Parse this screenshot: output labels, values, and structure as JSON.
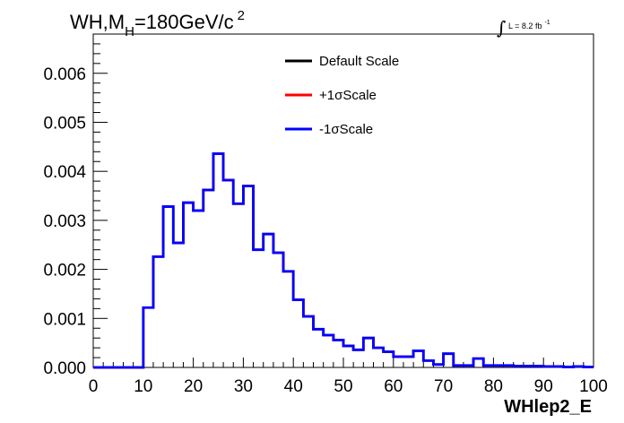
{
  "chart_data": {
    "type": "line",
    "title": {
      "main": "WH,M",
      "subscript": "H",
      "rest": "=180GeV/c",
      "superscript": "2"
    },
    "luminosity": {
      "integral": "∫",
      "text": "L = 8.2 fb",
      "superscript": "-1"
    },
    "xlabel": "WHlep2_E",
    "ylabel": "",
    "xlim": [
      0,
      100
    ],
    "ylim": [
      0,
      0.0068
    ],
    "x_ticks": [
      "0",
      "10",
      "20",
      "30",
      "40",
      "50",
      "60",
      "70",
      "80",
      "90",
      "100"
    ],
    "y_ticks": [
      "0.000",
      "0.001",
      "0.002",
      "0.003",
      "0.004",
      "0.005",
      "0.006"
    ],
    "bin_width": 2,
    "bin_edges_start": 0,
    "series": [
      {
        "name": "Default Scale",
        "color": "#000000",
        "values": [
          0,
          0,
          0,
          0,
          0,
          0.00122,
          0.00226,
          0.00328,
          0.00254,
          0.00336,
          0.0032,
          0.00362,
          0.00436,
          0.00382,
          0.00334,
          0.0037,
          0.0024,
          0.00272,
          0.00234,
          0.00196,
          0.00138,
          0.00104,
          0.00078,
          0.00066,
          0.00056,
          0.00044,
          0.00036,
          0.0006,
          0.0004,
          0.00032,
          0.00022,
          0.00022,
          0.00034,
          0.00014,
          6e-05,
          0.00028,
          4e-05,
          4e-05,
          0.00018,
          4e-05,
          4e-05,
          4e-05,
          3e-05,
          3e-05,
          3e-05,
          2e-05,
          2e-05,
          1e-05,
          2e-05,
          1e-05
        ]
      },
      {
        "name": "+1σScale",
        "color": "#ff0000",
        "values": [
          0,
          0,
          0,
          0,
          0,
          0.00122,
          0.00226,
          0.00328,
          0.00254,
          0.00336,
          0.0032,
          0.00362,
          0.00436,
          0.00382,
          0.00334,
          0.0037,
          0.0024,
          0.00272,
          0.00234,
          0.00196,
          0.00138,
          0.00104,
          0.00078,
          0.00066,
          0.00056,
          0.00044,
          0.00036,
          0.0006,
          0.0004,
          0.00032,
          0.00022,
          0.00022,
          0.00034,
          0.00014,
          6e-05,
          0.00028,
          4e-05,
          4e-05,
          0.00018,
          4e-05,
          4e-05,
          4e-05,
          3e-05,
          3e-05,
          3e-05,
          2e-05,
          2e-05,
          1e-05,
          2e-05,
          1e-05
        ]
      },
      {
        "name": "-1σScale",
        "color": "#0000ff",
        "values": [
          0,
          0,
          0,
          0,
          0,
          0.00122,
          0.00226,
          0.00328,
          0.00254,
          0.00336,
          0.0032,
          0.00362,
          0.00436,
          0.00382,
          0.00334,
          0.0037,
          0.0024,
          0.00272,
          0.00234,
          0.00196,
          0.00138,
          0.00104,
          0.00078,
          0.00066,
          0.00056,
          0.00044,
          0.00036,
          0.0006,
          0.0004,
          0.00032,
          0.00022,
          0.00022,
          0.00034,
          0.00014,
          6e-05,
          0.00028,
          4e-05,
          4e-05,
          0.00018,
          4e-05,
          4e-05,
          4e-05,
          3e-05,
          3e-05,
          3e-05,
          2e-05,
          2e-05,
          1e-05,
          2e-05,
          1e-05
        ]
      }
    ],
    "legend_position": "top-center",
    "grid": false
  }
}
